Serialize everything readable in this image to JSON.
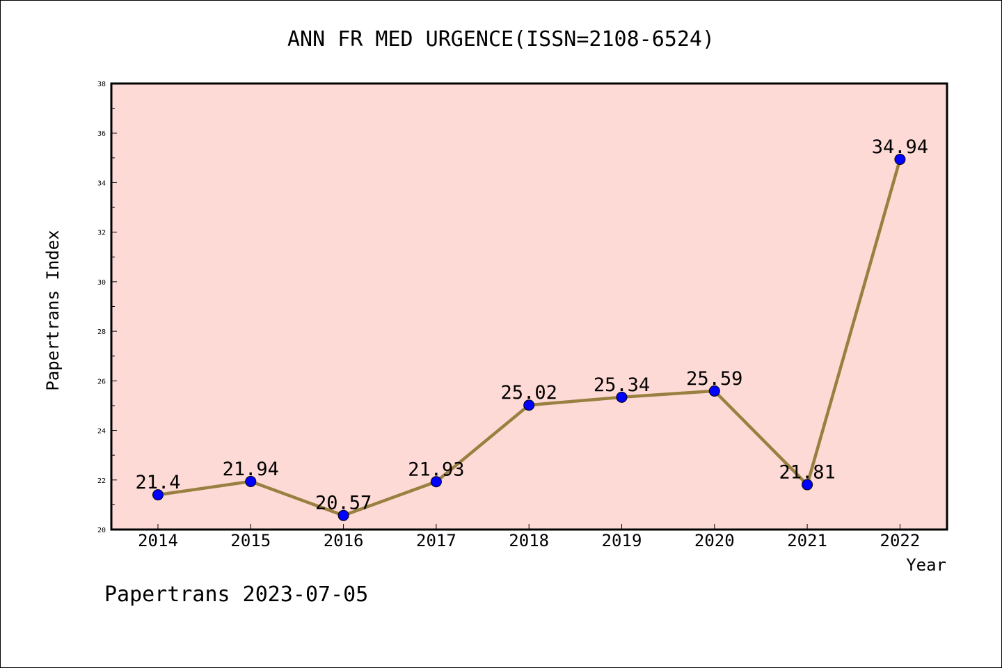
{
  "chart_data": {
    "type": "line",
    "title": "ANN FR MED URGENCE(ISSN=2108-6524)",
    "xlabel": "Year",
    "ylabel": "Papertrans Index",
    "categories": [
      "2014",
      "2015",
      "2016",
      "2017",
      "2018",
      "2019",
      "2020",
      "2021",
      "2022"
    ],
    "values": [
      21.4,
      21.94,
      20.57,
      21.93,
      25.02,
      25.34,
      25.59,
      21.81,
      34.94
    ],
    "data_labels": [
      "21.4",
      "21.94",
      "20.57",
      "21.93",
      "25.02",
      "25.34",
      "25.59",
      "21.81",
      "34.94"
    ],
    "ylim": [
      20,
      38
    ],
    "yticks": [
      20,
      22,
      24,
      26,
      28,
      30,
      32,
      34,
      36,
      38
    ],
    "grid": false,
    "legend": "none",
    "footer": "Papertrans 2023-07-05",
    "colors": {
      "plot_background": "#fddad6",
      "line": "#9a8040",
      "marker": "#0000ff"
    }
  }
}
